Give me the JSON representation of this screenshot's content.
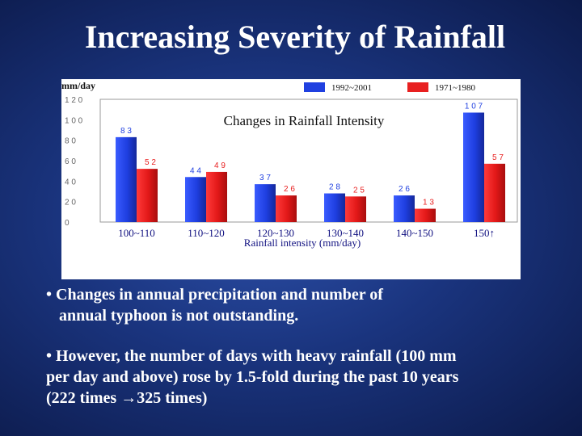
{
  "slide": {
    "title": "Increasing Severity of Rainfall"
  },
  "bullets": {
    "b1_line1": "• Changes in annual precipitation and number of",
    "b1_line2": "annual typhoon is not outstanding.",
    "b2_line1": "• However, the number of days with heavy rainfall (100 mm",
    "b2_line2": "per day and above) rose by 1.5-fold during the past 10 years",
    "b2_line3": "(222 times →325 times)"
  },
  "chart_data": {
    "type": "bar",
    "title": "Changes in Rainfall Intensity",
    "xlabel": "Rainfall intensity (mm/day)",
    "ylabel": "mm/day",
    "ylim": [
      0,
      120
    ],
    "yticks": [
      "0",
      "2 0",
      "4 0",
      "6 0",
      "8 0",
      "1 0 0",
      "1 2 0"
    ],
    "categories": [
      "100~110",
      "110~120",
      "120~130",
      "130~140",
      "140~150",
      "150↑"
    ],
    "legend_position": "top-right",
    "series": [
      {
        "name": "1992~2001",
        "color": "#2040e0",
        "values": [
          83,
          44,
          37,
          28,
          26,
          107
        ],
        "labels": [
          "8 3",
          "4 4",
          "3 7",
          "2 8",
          "2 6",
          "1 0 7"
        ]
      },
      {
        "name": "1971~1980",
        "color": "#e82020",
        "values": [
          52,
          49,
          26,
          25,
          13,
          57
        ],
        "labels": [
          "5 2",
          "4 9",
          "2 6",
          "2 5",
          "1 3",
          "5 7"
        ]
      }
    ]
  }
}
